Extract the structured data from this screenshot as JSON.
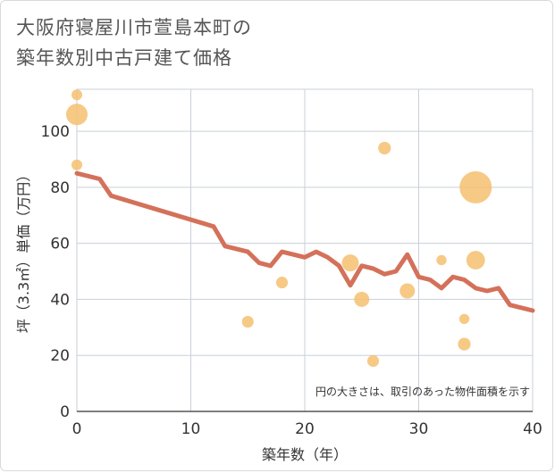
{
  "chart_data": {
    "type": "scatter",
    "title_lines": [
      "大阪府寝屋川市萱島本町の",
      "築年数別中古戸建て価格"
    ],
    "xlabel": "築年数（年）",
    "ylabel": "坪（3.3㎡）単価（万円）",
    "xlim": [
      0,
      40
    ],
    "ylim": [
      0,
      115
    ],
    "xticks": [
      0,
      10,
      20,
      30,
      40
    ],
    "yticks": [
      0,
      20,
      40,
      60,
      80,
      100
    ],
    "grid": true,
    "note": "円の大きさは、取引のあった物件面積を示す",
    "colors": {
      "points": "#f5c070",
      "line": "#d4715a",
      "grid": "#c8d0d8"
    },
    "scatter": [
      {
        "x": 0,
        "y": 113,
        "size": 1
      },
      {
        "x": 0,
        "y": 106,
        "size": 4
      },
      {
        "x": 0,
        "y": 88,
        "size": 1
      },
      {
        "x": 15,
        "y": 32,
        "size": 1.2
      },
      {
        "x": 18,
        "y": 46,
        "size": 1.2
      },
      {
        "x": 24,
        "y": 53,
        "size": 2.5
      },
      {
        "x": 25,
        "y": 40,
        "size": 2
      },
      {
        "x": 26,
        "y": 18,
        "size": 1.2
      },
      {
        "x": 27,
        "y": 94,
        "size": 1.4
      },
      {
        "x": 29,
        "y": 43,
        "size": 2
      },
      {
        "x": 32,
        "y": 54,
        "size": 0.9
      },
      {
        "x": 34,
        "y": 33,
        "size": 0.9
      },
      {
        "x": 34,
        "y": 24,
        "size": 1.4
      },
      {
        "x": 35,
        "y": 80,
        "size": 9
      },
      {
        "x": 35,
        "y": 54,
        "size": 3
      }
    ],
    "line": {
      "x": [
        0,
        2,
        3,
        12,
        13,
        15,
        16,
        17,
        18,
        19,
        20,
        21,
        22,
        23,
        24,
        25,
        26,
        27,
        28,
        29,
        30,
        31,
        32,
        33,
        34,
        35,
        36,
        37,
        38,
        40
      ],
      "y": [
        85,
        83,
        77,
        66,
        59,
        57,
        53,
        52,
        57,
        56,
        55,
        57,
        55,
        52,
        45,
        52,
        51,
        49,
        50,
        56,
        48,
        47,
        44,
        48,
        47,
        44,
        43,
        44,
        38,
        36
      ]
    }
  }
}
